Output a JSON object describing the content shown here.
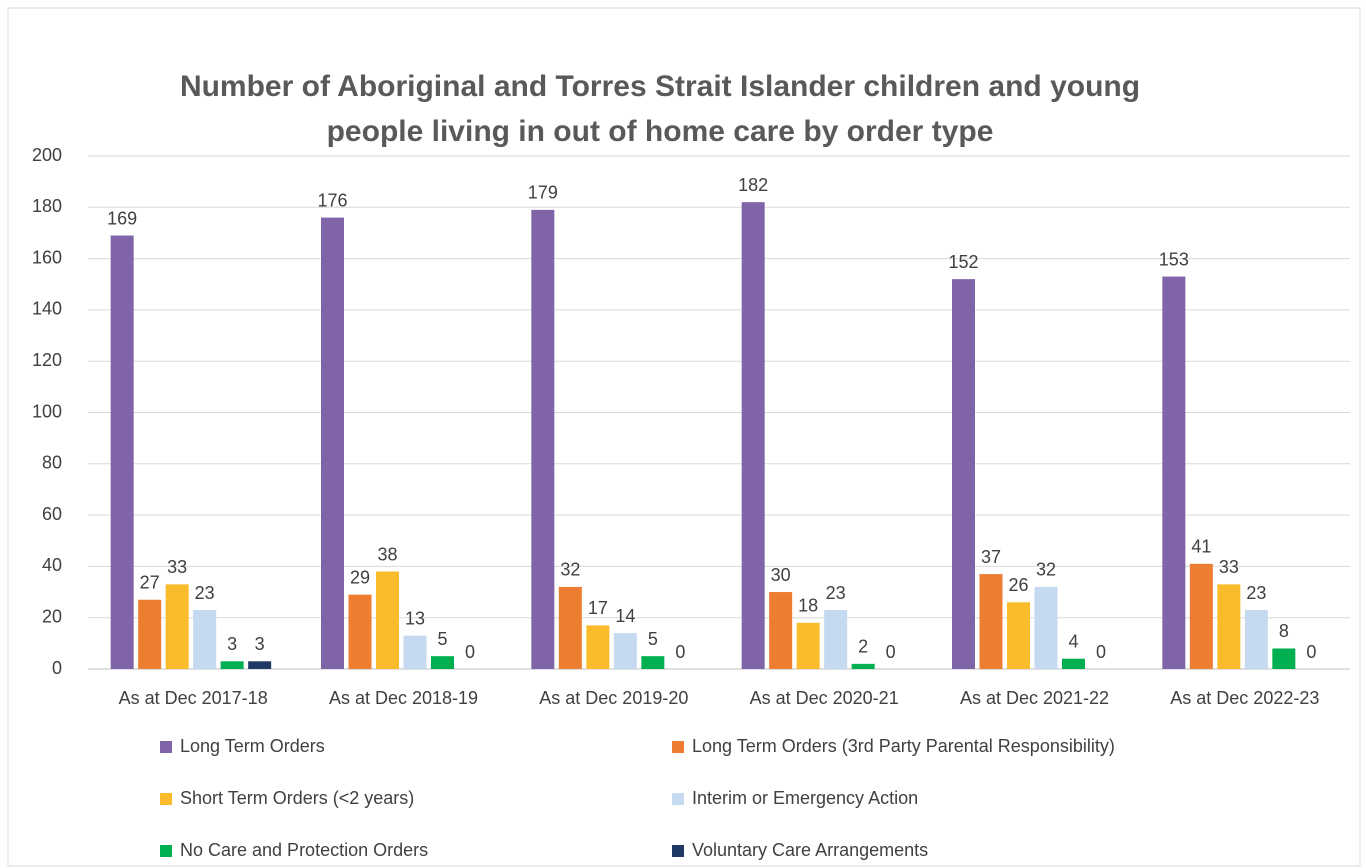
{
  "chart_data": {
    "type": "bar",
    "title": [
      "Number of Aboriginal and Torres Strait Islander children and young",
      "people living in out of home care by order type"
    ],
    "categories": [
      "As at Dec 2017-18",
      "As at Dec 2018-19",
      "As at Dec 2019-20",
      "As at Dec 2020-21",
      "As at Dec 2021-22",
      "As at Dec 2022-23"
    ],
    "series": [
      {
        "name": "Long Term Orders",
        "color": "#8064a8",
        "values": [
          169,
          176,
          179,
          182,
          152,
          153
        ]
      },
      {
        "name": "Long Term Orders (3rd Party Parental Responsibility)",
        "color": "#ed7d31",
        "values": [
          27,
          29,
          32,
          30,
          37,
          41
        ]
      },
      {
        "name": "Short Term Orders (<2 years)",
        "color": "#fbbc2c",
        "values": [
          33,
          38,
          17,
          18,
          26,
          33
        ]
      },
      {
        "name": "Interim or Emergency Action",
        "color": "#c5d9f1",
        "values": [
          23,
          13,
          14,
          23,
          32,
          23
        ]
      },
      {
        "name": "No Care and Protection Orders",
        "color": "#00b050",
        "values": [
          3,
          5,
          5,
          2,
          4,
          8
        ]
      },
      {
        "name": "Voluntary Care Arrangements",
        "color": "#1f3864",
        "values": [
          3,
          0,
          0,
          0,
          0,
          0
        ]
      }
    ],
    "ylim": [
      0,
      200
    ],
    "yticks": [
      0,
      20,
      40,
      60,
      80,
      100,
      120,
      140,
      160,
      180,
      200
    ],
    "grid": true,
    "legend": "bottom"
  }
}
